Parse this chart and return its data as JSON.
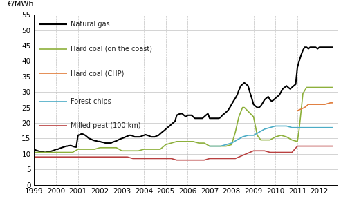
{
  "ylabel": "€/MWh",
  "ylim": [
    0,
    55
  ],
  "yticks": [
    0,
    5,
    10,
    15,
    20,
    25,
    30,
    35,
    40,
    45,
    50,
    55
  ],
  "xlim_start": 1999.0,
  "xlim_end": 2012.83,
  "xtick_years": [
    1999,
    2000,
    2001,
    2002,
    2003,
    2004,
    2005,
    2006,
    2007,
    2008,
    2009,
    2010,
    2011,
    2012
  ],
  "background_color": "#ffffff",
  "grid_color": "#bbbbbb",
  "natural_gas": {
    "label": "Natural gas",
    "color": "#000000",
    "linewidth": 1.5,
    "x": [
      1999.0,
      1999.08,
      1999.17,
      1999.25,
      1999.33,
      1999.42,
      1999.5,
      1999.58,
      1999.67,
      1999.75,
      1999.83,
      1999.92,
      2000.0,
      2000.08,
      2000.17,
      2000.25,
      2000.33,
      2000.42,
      2000.5,
      2000.58,
      2000.67,
      2000.75,
      2000.83,
      2000.92,
      2001.0,
      2001.08,
      2001.17,
      2001.25,
      2001.33,
      2001.42,
      2001.5,
      2001.58,
      2001.67,
      2001.75,
      2001.83,
      2001.92,
      2002.0,
      2002.08,
      2002.17,
      2002.25,
      2002.33,
      2002.42,
      2002.5,
      2002.58,
      2002.67,
      2002.75,
      2002.83,
      2002.92,
      2003.0,
      2003.08,
      2003.17,
      2003.25,
      2003.33,
      2003.42,
      2003.5,
      2003.58,
      2003.67,
      2003.75,
      2003.83,
      2003.92,
      2004.0,
      2004.08,
      2004.17,
      2004.25,
      2004.33,
      2004.42,
      2004.5,
      2004.58,
      2004.67,
      2004.75,
      2004.83,
      2004.92,
      2005.0,
      2005.08,
      2005.17,
      2005.25,
      2005.33,
      2005.42,
      2005.5,
      2005.58,
      2005.67,
      2005.75,
      2005.83,
      2005.92,
      2006.0,
      2006.08,
      2006.17,
      2006.25,
      2006.33,
      2006.42,
      2006.5,
      2006.58,
      2006.67,
      2006.75,
      2006.83,
      2006.92,
      2007.0,
      2007.08,
      2007.17,
      2007.25,
      2007.33,
      2007.42,
      2007.5,
      2007.58,
      2007.67,
      2007.75,
      2007.83,
      2007.92,
      2008.0,
      2008.08,
      2008.17,
      2008.25,
      2008.33,
      2008.42,
      2008.5,
      2008.58,
      2008.67,
      2008.75,
      2008.83,
      2008.92,
      2009.0,
      2009.08,
      2009.17,
      2009.25,
      2009.33,
      2009.42,
      2009.5,
      2009.58,
      2009.67,
      2009.75,
      2009.83,
      2009.92,
      2010.0,
      2010.08,
      2010.17,
      2010.25,
      2010.33,
      2010.42,
      2010.5,
      2010.58,
      2010.67,
      2010.75,
      2010.83,
      2010.92,
      2011.0,
      2011.08,
      2011.17,
      2011.25,
      2011.33,
      2011.42,
      2011.5,
      2011.58,
      2011.67,
      2011.75,
      2011.83,
      2011.92,
      2012.0,
      2012.08,
      2012.17,
      2012.25,
      2012.33,
      2012.42,
      2012.5,
      2012.58
    ],
    "y": [
      11.5,
      11.2,
      11.0,
      10.8,
      10.7,
      10.6,
      10.5,
      10.6,
      10.7,
      10.8,
      11.0,
      11.2,
      11.5,
      11.5,
      11.8,
      12.0,
      12.2,
      12.4,
      12.5,
      12.6,
      12.7,
      12.5,
      12.3,
      12.2,
      16.0,
      16.2,
      16.5,
      16.3,
      16.0,
      15.5,
      15.0,
      14.8,
      14.5,
      14.3,
      14.2,
      14.0,
      14.0,
      13.8,
      13.7,
      13.5,
      13.5,
      13.5,
      13.5,
      13.8,
      14.0,
      14.2,
      14.5,
      14.8,
      15.0,
      15.2,
      15.5,
      15.7,
      16.0,
      16.0,
      15.8,
      15.5,
      15.5,
      15.5,
      15.5,
      15.8,
      16.0,
      16.2,
      16.0,
      15.8,
      15.5,
      15.5,
      15.5,
      15.8,
      16.0,
      16.5,
      17.0,
      17.5,
      18.0,
      18.5,
      19.0,
      19.5,
      20.0,
      20.5,
      22.5,
      22.8,
      23.0,
      23.0,
      22.5,
      22.0,
      22.5,
      22.5,
      22.5,
      22.0,
      21.5,
      21.5,
      21.5,
      21.5,
      21.5,
      22.0,
      22.5,
      23.0,
      21.5,
      21.5,
      21.5,
      21.5,
      21.5,
      21.5,
      21.8,
      22.5,
      23.0,
      23.5,
      24.0,
      25.0,
      26.0,
      27.0,
      28.0,
      29.0,
      30.5,
      32.0,
      32.5,
      33.0,
      32.5,
      32.0,
      30.0,
      28.0,
      26.0,
      25.5,
      25.0,
      25.0,
      25.5,
      26.5,
      27.5,
      28.0,
      28.5,
      27.5,
      27.0,
      27.5,
      28.0,
      28.5,
      29.0,
      30.0,
      31.0,
      31.5,
      32.0,
      31.5,
      31.0,
      31.5,
      32.0,
      32.5,
      38.0,
      40.0,
      42.0,
      43.5,
      44.5,
      44.5,
      44.0,
      44.5,
      44.5,
      44.5,
      44.5,
      44.0,
      44.5,
      44.5,
      44.5,
      44.5,
      44.5,
      44.5,
      44.5,
      44.5
    ]
  },
  "hard_coal_coast": {
    "label": "Hard coal (on the coast)",
    "color": "#8db03b",
    "linewidth": 1.2,
    "x": [
      1999.0,
      1999.25,
      1999.5,
      1999.75,
      2000.0,
      2000.25,
      2000.5,
      2000.75,
      2001.0,
      2001.25,
      2001.5,
      2001.75,
      2002.0,
      2002.25,
      2002.5,
      2002.75,
      2003.0,
      2003.25,
      2003.5,
      2003.75,
      2004.0,
      2004.25,
      2004.5,
      2004.75,
      2005.0,
      2005.25,
      2005.5,
      2005.75,
      2006.0,
      2006.25,
      2006.5,
      2006.75,
      2007.0,
      2007.25,
      2007.5,
      2007.75,
      2008.0,
      2008.17,
      2008.33,
      2008.5,
      2008.58,
      2009.0,
      2009.17,
      2009.33,
      2009.5,
      2009.75,
      2010.0,
      2010.25,
      2010.5,
      2010.75,
      2011.0,
      2011.08,
      2011.17,
      2011.25,
      2011.42,
      2011.58,
      2011.75,
      2012.0,
      2012.25,
      2012.5,
      2012.58
    ],
    "y": [
      10.5,
      10.5,
      10.5,
      10.5,
      10.5,
      10.5,
      10.5,
      10.5,
      11.5,
      11.5,
      11.5,
      11.5,
      12.0,
      12.0,
      12.0,
      12.0,
      11.0,
      11.0,
      11.0,
      11.0,
      11.5,
      11.5,
      11.5,
      11.5,
      13.0,
      13.5,
      14.0,
      14.0,
      14.0,
      14.0,
      13.5,
      13.5,
      12.5,
      12.5,
      12.5,
      12.5,
      13.0,
      17.0,
      22.0,
      25.0,
      25.0,
      22.0,
      16.0,
      14.5,
      14.5,
      14.5,
      15.5,
      16.0,
      15.5,
      14.5,
      14.0,
      18.0,
      24.0,
      29.5,
      31.5,
      31.5,
      31.5,
      31.5,
      31.5,
      31.5,
      31.5
    ]
  },
  "hard_coal_chp": {
    "label": "Hard coal (CHP)",
    "color": "#e07b39",
    "linewidth": 1.2,
    "x": [
      2011.0,
      2011.17,
      2011.33,
      2011.5,
      2011.67,
      2011.75,
      2012.0,
      2012.25,
      2012.5,
      2012.58
    ],
    "y": [
      24.0,
      24.5,
      25.0,
      26.0,
      26.0,
      26.0,
      26.0,
      26.0,
      26.5,
      26.5
    ]
  },
  "forest_chips": {
    "label": "Forest chips",
    "color": "#4bacc6",
    "linewidth": 1.2,
    "x": [
      2007.0,
      2007.25,
      2007.5,
      2007.75,
      2008.0,
      2008.25,
      2008.5,
      2008.75,
      2009.0,
      2009.25,
      2009.5,
      2009.75,
      2010.0,
      2010.25,
      2010.5,
      2010.75,
      2011.0,
      2011.25,
      2011.5,
      2011.75,
      2012.0,
      2012.25,
      2012.5,
      2012.58
    ],
    "y": [
      12.5,
      12.5,
      12.5,
      13.0,
      13.5,
      14.5,
      15.5,
      16.0,
      16.0,
      17.0,
      18.0,
      18.5,
      19.0,
      19.0,
      19.0,
      18.5,
      18.5,
      18.5,
      18.5,
      18.5,
      18.5,
      18.5,
      18.5,
      18.5
    ]
  },
  "milled_peat": {
    "label": "Milled peat (100 km)",
    "color": "#b94040",
    "linewidth": 1.2,
    "x": [
      1999.0,
      1999.25,
      1999.5,
      1999.75,
      2000.0,
      2000.25,
      2000.5,
      2000.75,
      2001.0,
      2001.25,
      2001.5,
      2001.75,
      2002.0,
      2002.25,
      2002.5,
      2002.75,
      2003.0,
      2003.25,
      2003.5,
      2003.75,
      2004.0,
      2004.25,
      2004.5,
      2004.75,
      2005.0,
      2005.25,
      2005.5,
      2005.75,
      2006.0,
      2006.25,
      2006.5,
      2006.75,
      2007.0,
      2007.25,
      2007.5,
      2007.75,
      2008.0,
      2008.17,
      2009.0,
      2009.25,
      2009.5,
      2009.75,
      2010.0,
      2010.25,
      2010.5,
      2010.75,
      2011.0,
      2011.25,
      2011.5,
      2011.75,
      2012.0,
      2012.25,
      2012.5,
      2012.58
    ],
    "y": [
      9.0,
      9.0,
      9.0,
      9.0,
      9.0,
      9.0,
      9.0,
      9.0,
      9.0,
      9.0,
      9.0,
      9.0,
      9.0,
      9.0,
      9.0,
      9.0,
      9.0,
      9.0,
      8.5,
      8.5,
      8.5,
      8.5,
      8.5,
      8.5,
      8.5,
      8.5,
      8.0,
      8.0,
      8.0,
      8.0,
      8.0,
      8.0,
      8.5,
      8.5,
      8.5,
      8.5,
      8.5,
      8.5,
      11.0,
      11.0,
      11.0,
      10.5,
      10.5,
      10.5,
      10.5,
      10.5,
      12.5,
      12.5,
      12.5,
      12.5,
      12.5,
      12.5,
      12.5,
      12.5
    ]
  },
  "legend_entries": [
    {
      "label": "Natural gas",
      "color": "#000000",
      "y_data": 52
    },
    {
      "label": "Hard coal (on the coast)",
      "color": "#8db03b",
      "y_data": 44
    },
    {
      "label": "Hard coal (CHP)",
      "color": "#e07b39",
      "y_data": 36
    },
    {
      "label": "Forest chips",
      "color": "#4bacc6",
      "y_data": 27
    },
    {
      "label": "Milled peat (100 km)",
      "color": "#b94040",
      "y_data": 19
    }
  ]
}
